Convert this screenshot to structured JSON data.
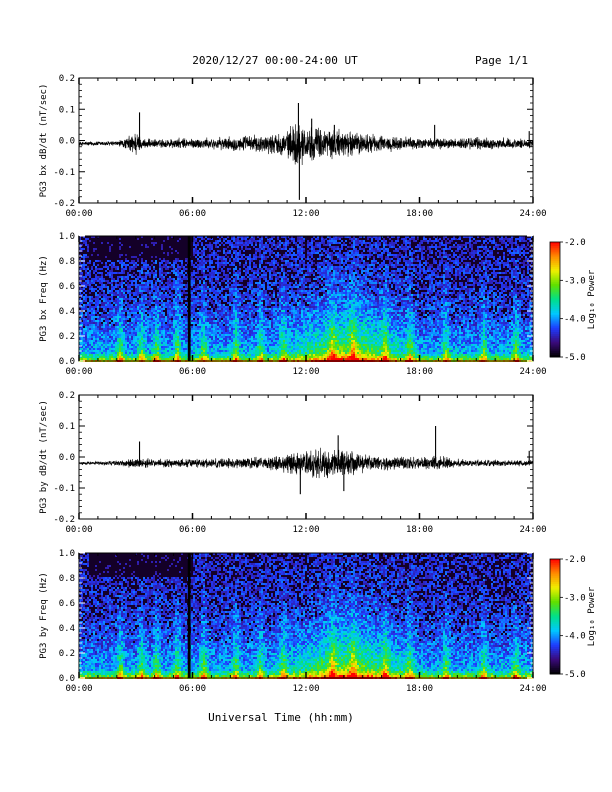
{
  "header": {
    "date_range": "2020/12/27  00:00-24:00 UT",
    "page": "Page 1/1"
  },
  "xaxis": {
    "ticks": [
      "00:00",
      "06:00",
      "12:00",
      "18:00",
      "24:00"
    ],
    "label": "Universal Time (hh:mm)",
    "xlim": [
      0,
      24
    ]
  },
  "colorbar": {
    "label": "Log₁₀ Power",
    "ticks": [
      "-2.0",
      "-3.0",
      "-4.0",
      "-5.0"
    ],
    "range": [
      -5.0,
      -2.0
    ],
    "colors": [
      "#000000",
      "#3a0a7a",
      "#1e3cff",
      "#00c8ff",
      "#00e08a",
      "#60e000",
      "#f0f000",
      "#ff8a00",
      "#ff0000"
    ]
  },
  "chart_data": [
    {
      "type": "line",
      "name": "pg3-bx-dbdt",
      "ylabel": "PG3 bx dB/dt (nT/sec)",
      "ylim": [
        -0.2,
        0.2
      ],
      "yticks": [
        "0.2",
        "0.1",
        "0.0",
        "-0.1",
        "-0.2"
      ],
      "baseline": -0.01,
      "envelope": [
        [
          0,
          0.008
        ],
        [
          2,
          0.01
        ],
        [
          2.5,
          0.02
        ],
        [
          3,
          0.05
        ],
        [
          3.3,
          0.02
        ],
        [
          4,
          0.015
        ],
        [
          5,
          0.02
        ],
        [
          6,
          0.02
        ],
        [
          7,
          0.02
        ],
        [
          8,
          0.025
        ],
        [
          9,
          0.03
        ],
        [
          10,
          0.035
        ],
        [
          11,
          0.045
        ],
        [
          11.5,
          0.09
        ],
        [
          12,
          0.06
        ],
        [
          13,
          0.06
        ],
        [
          14,
          0.05
        ],
        [
          15,
          0.04
        ],
        [
          16,
          0.03
        ],
        [
          17,
          0.025
        ],
        [
          18,
          0.02
        ],
        [
          19,
          0.02
        ],
        [
          20,
          0.02
        ],
        [
          21,
          0.025
        ],
        [
          22,
          0.02
        ],
        [
          23,
          0.02
        ],
        [
          24,
          0.015
        ]
      ],
      "spikes": [
        [
          3.2,
          0.09
        ],
        [
          11.6,
          0.12
        ],
        [
          11.65,
          -0.19
        ],
        [
          12.3,
          0.07
        ],
        [
          13.5,
          0.05
        ],
        [
          18.8,
          0.05
        ],
        [
          23.8,
          0.03
        ]
      ]
    },
    {
      "type": "heatmap",
      "name": "pg3-bx-freq",
      "ylabel": "PG3 bx Freq (Hz)",
      "ylim": [
        0.0,
        1.0
      ],
      "yticks": [
        "1.0",
        "0.8",
        "0.6",
        "0.4",
        "0.2",
        "0.0"
      ],
      "z_range": [
        -5.0,
        -2.0
      ],
      "gaps": [
        [
          5.75,
          5.9
        ]
      ]
    },
    {
      "type": "line",
      "name": "pg3-by-dbdt",
      "ylabel": "PG3 by dB/dt (nT/sec)",
      "ylim": [
        -0.2,
        0.2
      ],
      "yticks": [
        "0.2",
        "0.1",
        "0.0",
        "-0.1",
        "-0.2"
      ],
      "baseline": -0.02,
      "envelope": [
        [
          0,
          0.006
        ],
        [
          2,
          0.008
        ],
        [
          3,
          0.02
        ],
        [
          4,
          0.015
        ],
        [
          5,
          0.015
        ],
        [
          6,
          0.015
        ],
        [
          8,
          0.02
        ],
        [
          10,
          0.025
        ],
        [
          11,
          0.035
        ],
        [
          12,
          0.045
        ],
        [
          13,
          0.055
        ],
        [
          14,
          0.05
        ],
        [
          15,
          0.035
        ],
        [
          16,
          0.025
        ],
        [
          18,
          0.02
        ],
        [
          19,
          0.03
        ],
        [
          20,
          0.015
        ],
        [
          22,
          0.012
        ],
        [
          24,
          0.01
        ]
      ],
      "spikes": [
        [
          3.2,
          0.05
        ],
        [
          11.7,
          -0.12
        ],
        [
          13.7,
          0.07
        ],
        [
          14,
          -0.11
        ],
        [
          18.85,
          0.1
        ],
        [
          23.8,
          0.02
        ]
      ]
    },
    {
      "type": "heatmap",
      "name": "pg3-by-freq",
      "ylabel": "PG3 by Freq (Hz)",
      "ylim": [
        0.0,
        1.0
      ],
      "yticks": [
        "1.0",
        "0.8",
        "0.6",
        "0.4",
        "0.2",
        "0.0"
      ],
      "z_range": [
        -5.0,
        -2.0
      ],
      "gaps": [
        [
          5.75,
          5.9
        ]
      ]
    }
  ]
}
